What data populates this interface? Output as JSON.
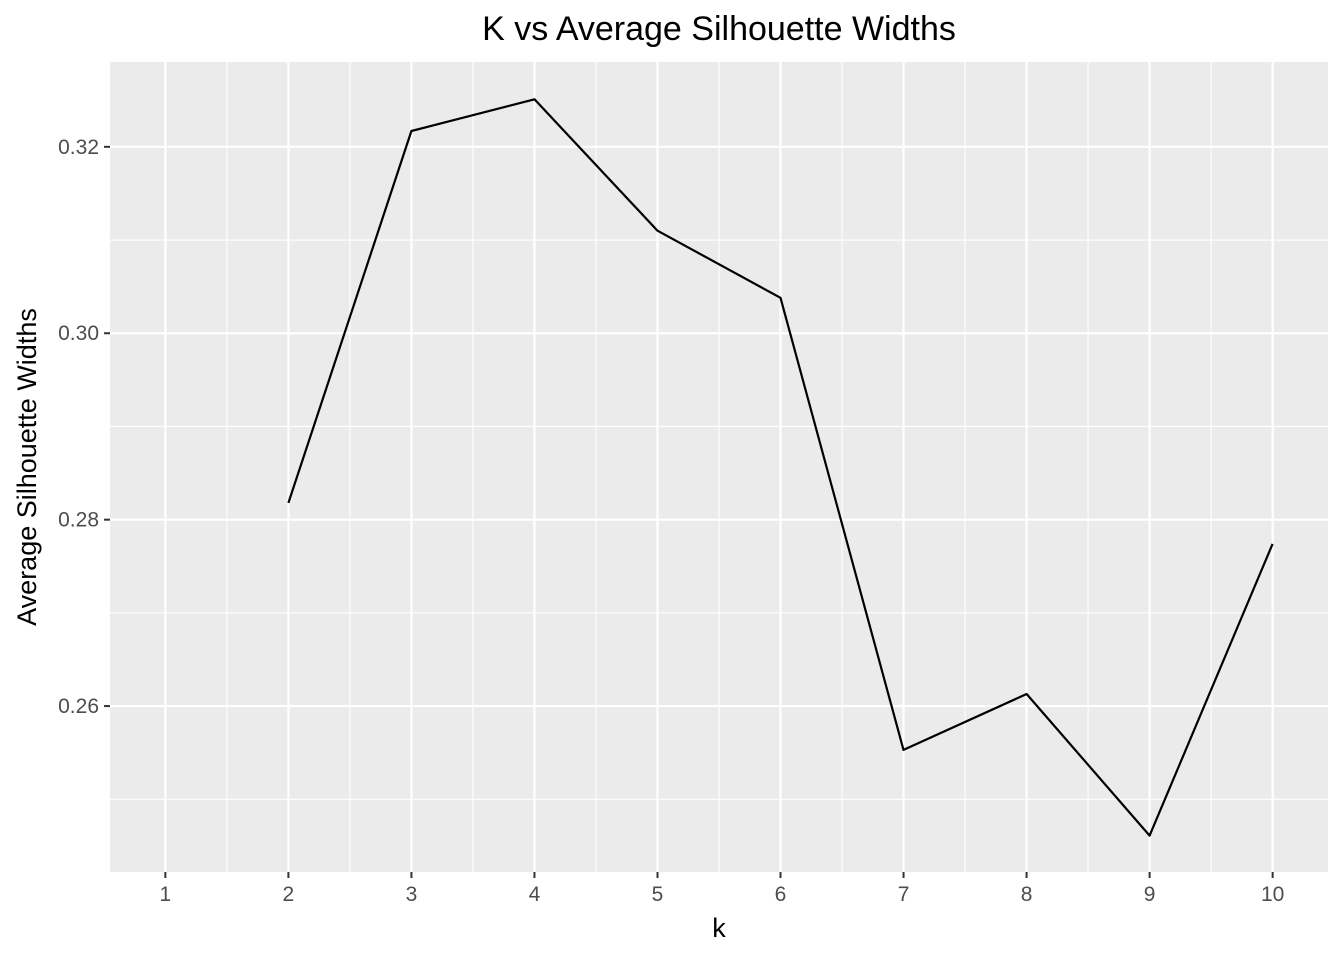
{
  "chart_data": {
    "type": "line",
    "title": "K vs Average Silhouette Widths",
    "xlabel": "k",
    "ylabel": "Average Silhouette Widths",
    "x": [
      2,
      3,
      4,
      5,
      6,
      7,
      8,
      9,
      10
    ],
    "series": [
      {
        "values": [
          0.2818,
          0.3217,
          0.3251,
          0.311,
          0.3038,
          0.2553,
          0.2613,
          0.2461,
          0.2774
        ]
      }
    ],
    "x_ticks": [
      1,
      2,
      3,
      4,
      5,
      6,
      7,
      8,
      9,
      10
    ],
    "x_tick_labels": [
      "1",
      "2",
      "3",
      "4",
      "5",
      "6",
      "7",
      "8",
      "9",
      "10"
    ],
    "xlim": [
      0.55,
      10.45
    ],
    "y_ticks": [
      0.26,
      0.28,
      0.3,
      0.32
    ],
    "y_tick_labels": [
      "0.26",
      "0.28",
      "0.30",
      "0.32"
    ],
    "y_minor_ticks": [
      0.25,
      0.27,
      0.29,
      0.31
    ],
    "ylim": [
      0.2422,
      0.3291
    ],
    "grid": true,
    "legend": "none",
    "colors": {
      "panel_background": "#EBEBEB",
      "grid_line": "#FFFFFF",
      "series_line": "#000000",
      "tick_label": "#4D4D4D",
      "tick_mark": "#333333"
    }
  }
}
